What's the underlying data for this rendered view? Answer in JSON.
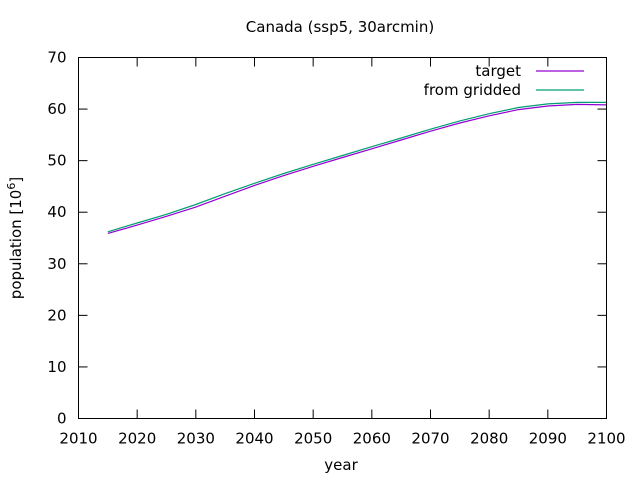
{
  "chart_data": {
    "type": "line",
    "title": "Canada (ssp5, 30arcmin)",
    "xlabel": "year",
    "ylabel": "population [10",
    "ylabel_sup": "6",
    "ylabel_suffix": "]",
    "xlim": [
      2010,
      2100
    ],
    "ylim": [
      0,
      70
    ],
    "xticks": [
      2010,
      2020,
      2030,
      2040,
      2050,
      2060,
      2070,
      2080,
      2090,
      2100
    ],
    "yticks": [
      0,
      10,
      20,
      30,
      40,
      50,
      60,
      70
    ],
    "grid": false,
    "legend_position": "top-right",
    "series": [
      {
        "name": "target",
        "color": "#9400d3",
        "x": [
          2015,
          2020,
          2025,
          2030,
          2035,
          2040,
          2045,
          2050,
          2055,
          2060,
          2065,
          2070,
          2075,
          2080,
          2085,
          2090,
          2095,
          2100
        ],
        "y": [
          35.9,
          37.5,
          39.2,
          41.0,
          43.1,
          45.2,
          47.1,
          48.9,
          50.6,
          52.3,
          54.0,
          55.7,
          57.3,
          58.7,
          59.9,
          60.6,
          60.9,
          60.8
        ]
      },
      {
        "name": "from gridded",
        "color": "#009e73",
        "x": [
          2015,
          2020,
          2025,
          2030,
          2035,
          2040,
          2045,
          2050,
          2055,
          2060,
          2065,
          2070,
          2075,
          2080,
          2085,
          2090,
          2095,
          2100
        ],
        "y": [
          36.2,
          37.9,
          39.6,
          41.5,
          43.6,
          45.6,
          47.5,
          49.3,
          51.0,
          52.7,
          54.4,
          56.1,
          57.7,
          59.1,
          60.3,
          61.0,
          61.3,
          61.3
        ]
      }
    ]
  }
}
